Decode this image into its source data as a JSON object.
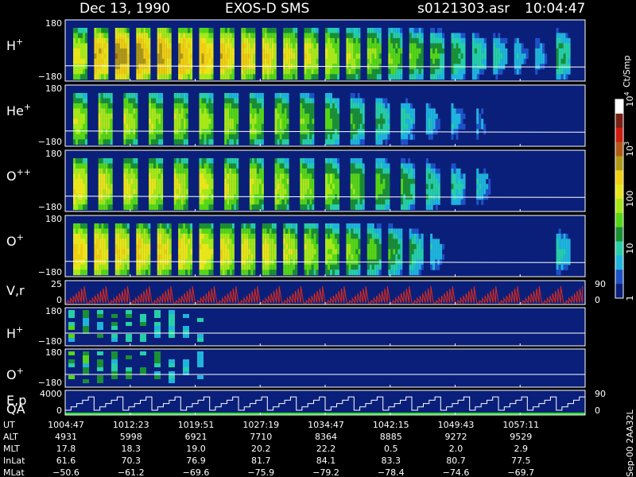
{
  "header": {
    "date": "Dec 13, 1990",
    "instrument": "EXOS-D SMS",
    "file": "s0121303.asr",
    "time": "10:04:47"
  },
  "colorbar": {
    "unit_label": "Ct/Smp",
    "tick_labels": [
      {
        "label": "10",
        "sup": "4",
        "value": 10000
      },
      {
        "label": "10",
        "sup": "3",
        "value": 1000
      },
      {
        "label": "100",
        "sup": "",
        "value": 100
      },
      {
        "label": "10",
        "sup": "",
        "value": 10
      },
      {
        "label": "1",
        "sup": "",
        "value": 1
      }
    ],
    "colors": [
      "#0a1f7a",
      "#1f52c8",
      "#1fb4dc",
      "#26cfa8",
      "#1a8f35",
      "#56d617",
      "#a6e81a",
      "#e8e51a",
      "#f0ce12",
      "#b09a17",
      "#b15a17",
      "#d01c10",
      "#7a2014",
      "#ffffff"
    ]
  },
  "panels": [
    {
      "ion": "H",
      "sup": "+",
      "y_top": "180",
      "y_bottom": "−180"
    },
    {
      "ion": "He",
      "sup": "+",
      "y_top": "180",
      "y_bottom": "−180"
    },
    {
      "ion": "O",
      "sup": "++",
      "y_top": "180",
      "y_bottom": "−180"
    },
    {
      "ion": "O",
      "sup": "+",
      "y_top": "180",
      "y_bottom": "−180"
    },
    {
      "ion": "V,r",
      "sup": "",
      "y_top": "25",
      "y_bottom": "0",
      "right_top": "90",
      "right_bottom": "0"
    },
    {
      "ion": "H",
      "sup": "+",
      "y_top": "180",
      "y_bottom": "−180"
    },
    {
      "ion": "O",
      "sup": "+",
      "y_top": "180",
      "y_bottom": "−180"
    },
    {
      "ion": "E,p",
      "ion2": "QA",
      "sup": "",
      "y_top": "4000",
      "y_bottom": "0",
      "right_top": "90",
      "right_bottom": "0"
    }
  ],
  "side_note": "Sep-00 2AA32L",
  "table": {
    "row_labels": [
      "UT",
      "ALT",
      "MLT",
      "InLat",
      "MLat"
    ],
    "columns": [
      [
        "1004:47",
        "4931",
        "17.8",
        "61.6",
        "−50.6"
      ],
      [
        "1012:23",
        "5998",
        "18.3",
        "70.3",
        "−61.2"
      ],
      [
        "1019:51",
        "6921",
        "19.0",
        "76.9",
        "−69.6"
      ],
      [
        "1027:19",
        "7710",
        "20.2",
        "81.7",
        "−75.9"
      ],
      [
        "1034:47",
        "8364",
        "22.2",
        "84.1",
        "−79.2"
      ],
      [
        "1042:15",
        "8885",
        "0.5",
        "83.3",
        "−78.4"
      ],
      [
        "1049:43",
        "9272",
        "2.0",
        "80.7",
        "−74.6"
      ],
      [
        "1057:11",
        "9529",
        "2.9",
        "77.5",
        "−69.7"
      ]
    ]
  },
  "chart_data": {
    "type": "heatmap",
    "x_tick_labels": [
      "1004:47",
      "1012:23",
      "1019:51",
      "1027:19",
      "1034:47",
      "1042:15",
      "1049:43",
      "1057:11"
    ],
    "y_range": [
      -180,
      180
    ],
    "color_scale": "log",
    "color_range": [
      1,
      10000
    ],
    "series": [
      {
        "name": "H+",
        "burst_count": 24,
        "intensity": [
          250,
          700,
          1200,
          1000,
          900,
          800,
          650,
          550,
          450,
          380,
          300,
          250,
          180,
          150,
          120,
          90,
          70,
          50,
          35,
          20,
          15,
          10,
          8,
          30
        ]
      },
      {
        "name": "He+",
        "burst_count": 20,
        "intensity": [
          150,
          180,
          160,
          150,
          140,
          130,
          120,
          110,
          100,
          80,
          60,
          40,
          25,
          15,
          10,
          8,
          6,
          0,
          0,
          0
        ]
      },
      {
        "name": "O++",
        "burst_count": 20,
        "intensity": [
          300,
          280,
          260,
          250,
          230,
          220,
          200,
          180,
          160,
          140,
          110,
          80,
          60,
          40,
          25,
          15,
          10,
          0,
          0,
          0
        ]
      },
      {
        "name": "O+",
        "burst_count": 24,
        "intensity": [
          500,
          450,
          420,
          400,
          380,
          350,
          320,
          300,
          270,
          240,
          200,
          160,
          120,
          90,
          60,
          40,
          25,
          10,
          0,
          0,
          0,
          0,
          0,
          15
        ]
      }
    ]
  }
}
